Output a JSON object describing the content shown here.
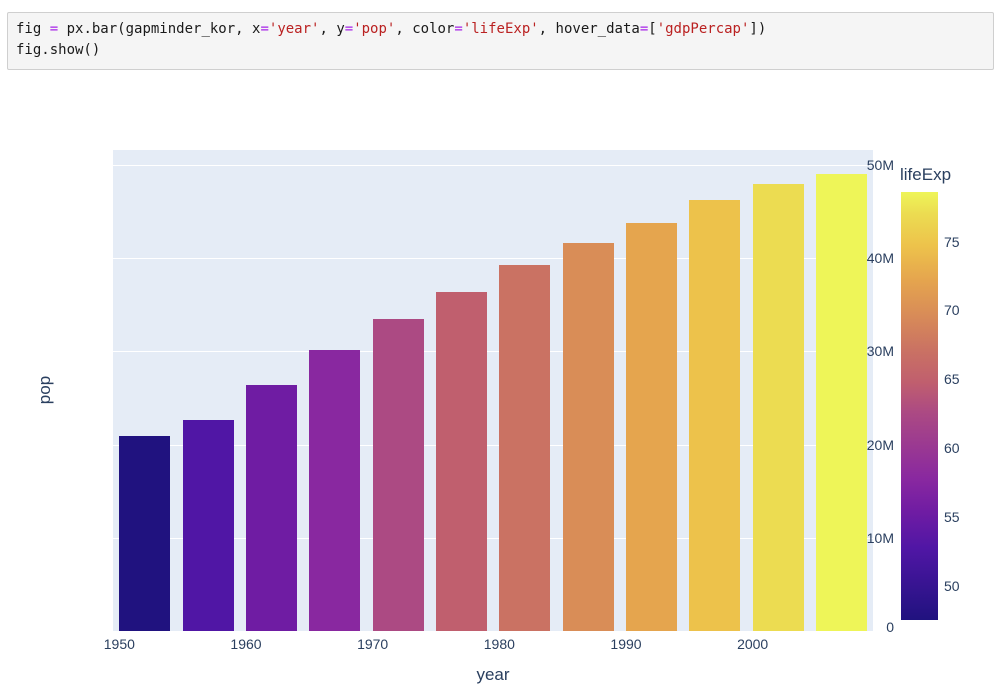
{
  "code_cell": {
    "lines": [
      {
        "segments": [
          {
            "t": "fig ",
            "c": "code"
          },
          {
            "t": "=",
            "c": "op"
          },
          {
            "t": " px.bar(gapminder_kor, x",
            "c": "code"
          },
          {
            "t": "=",
            "c": "op"
          },
          {
            "t": "'year'",
            "c": "str"
          },
          {
            "t": ", y",
            "c": "code"
          },
          {
            "t": "=",
            "c": "op"
          },
          {
            "t": "'pop'",
            "c": "str"
          },
          {
            "t": ", color",
            "c": "code"
          },
          {
            "t": "=",
            "c": "op"
          },
          {
            "t": "'lifeExp'",
            "c": "str"
          },
          {
            "t": ", hover_data",
            "c": "code"
          },
          {
            "t": "=",
            "c": "op"
          },
          {
            "t": "[",
            "c": "code"
          },
          {
            "t": "'gdpPercap'",
            "c": "str"
          },
          {
            "t": "])",
            "c": "code"
          }
        ]
      },
      {
        "segments": [
          {
            "t": "fig.show()",
            "c": "code"
          }
        ]
      }
    ]
  },
  "chart_data": {
    "type": "bar",
    "title": "",
    "xlabel": "year",
    "ylabel": "pop",
    "x": [
      1952,
      1957,
      1962,
      1967,
      1972,
      1977,
      1982,
      1987,
      1992,
      1997,
      2002,
      2007
    ],
    "values_millions": [
      20.9,
      22.6,
      26.4,
      30.1,
      33.5,
      36.4,
      39.3,
      41.6,
      43.8,
      46.2,
      48.0,
      49.0
    ],
    "bar_colors": [
      "#20127f",
      "#5016a5",
      "#6f1ca3",
      "#8928a0",
      "#ac4a83",
      "#c05f6e",
      "#ca7263",
      "#d98d57",
      "#e5a54e",
      "#edc24b",
      "#ecdc51",
      "#eef558"
    ],
    "x_range": [
      1949.5,
      2009.5
    ],
    "y_range_millions": [
      0,
      51.6
    ],
    "grid": "on",
    "x_ticks": [
      {
        "v": 1950,
        "label": "1950"
      },
      {
        "v": 1960,
        "label": "1960"
      },
      {
        "v": 1970,
        "label": "1970"
      },
      {
        "v": 1980,
        "label": "1980"
      },
      {
        "v": 1990,
        "label": "1990"
      },
      {
        "v": 2000,
        "label": "2000"
      }
    ],
    "y_ticks": [
      {
        "v": 0,
        "label": "0"
      },
      {
        "v": 10,
        "label": "10M"
      },
      {
        "v": 20,
        "label": "20M"
      },
      {
        "v": 30,
        "label": "30M"
      },
      {
        "v": 40,
        "label": "40M"
      },
      {
        "v": 50,
        "label": "50M"
      }
    ],
    "colorbar": {
      "title": "lifeExp",
      "min": 47.5,
      "max": 78.6,
      "ticks": [
        50,
        55,
        60,
        65,
        70,
        75
      ],
      "gradient": [
        {
          "pct": 0,
          "color": "#20127f"
        },
        {
          "pct": 16.8,
          "color": "#5016a5"
        },
        {
          "pct": 25.2,
          "color": "#6f1ca3"
        },
        {
          "pct": 32.9,
          "color": "#8928a0"
        },
        {
          "pct": 48.6,
          "color": "#ac4a83"
        },
        {
          "pct": 55.6,
          "color": "#c05f6e"
        },
        {
          "pct": 63.1,
          "color": "#ca7263"
        },
        {
          "pct": 71.7,
          "color": "#d98d57"
        },
        {
          "pct": 79.5,
          "color": "#e5a54e"
        },
        {
          "pct": 87.3,
          "color": "#edc24b"
        },
        {
          "pct": 94.9,
          "color": "#ecdc51"
        },
        {
          "pct": 100,
          "color": "#eef558"
        }
      ]
    }
  },
  "colors": {
    "plot_bg": "#e5ecf6",
    "grid": "#ffffff",
    "tick_text": "#2a3f5f",
    "code_bg": "#f5f5f5",
    "code_border": "#cfcfcf",
    "code_text": "#1a1a1a",
    "code_operator": "#a622e8",
    "code_string": "#ba2121"
  }
}
